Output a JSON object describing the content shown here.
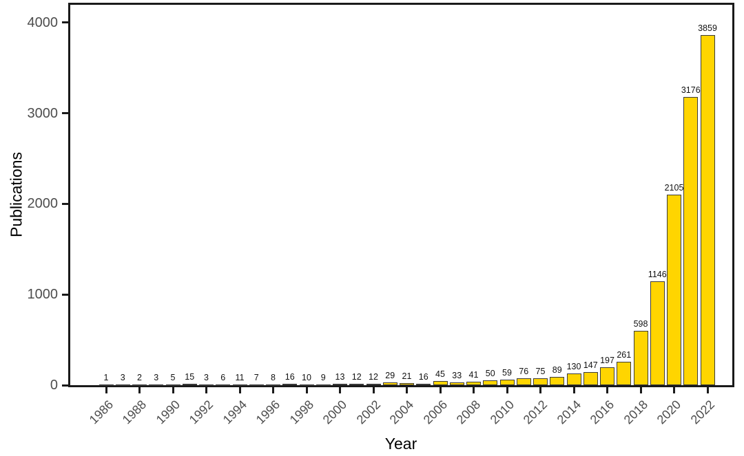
{
  "chart_data": {
    "type": "bar",
    "title": "",
    "xlabel": "Year",
    "ylabel": "Publications",
    "categories": [
      1986,
      1987,
      1988,
      1989,
      1990,
      1991,
      1992,
      1993,
      1994,
      1995,
      1996,
      1997,
      1998,
      1999,
      2000,
      2001,
      2002,
      2003,
      2004,
      2005,
      2006,
      2007,
      2008,
      2009,
      2010,
      2011,
      2012,
      2013,
      2014,
      2015,
      2016,
      2017,
      2018,
      2019,
      2020,
      2021,
      2022
    ],
    "values": [
      1,
      3,
      2,
      3,
      5,
      15,
      3,
      6,
      11,
      7,
      8,
      16,
      10,
      9,
      13,
      12,
      12,
      29,
      21,
      16,
      45,
      33,
      41,
      50,
      59,
      76,
      75,
      89,
      130,
      147,
      197,
      261,
      598,
      1146,
      2105,
      3176,
      3859
    ],
    "value_labels_shown": true,
    "yticks": [
      0,
      1000,
      2000,
      3000,
      4000
    ],
    "xticks": [
      1986,
      1988,
      1990,
      1992,
      1994,
      1996,
      1998,
      2000,
      2002,
      2004,
      2006,
      2008,
      2010,
      2012,
      2014,
      2016,
      2018,
      2020,
      2022
    ],
    "ylim": [
      0,
      4195
    ],
    "grid": false,
    "legend": null,
    "xtick_label_angle_degrees": 45,
    "colors": {
      "bar_fill": "#FFD500",
      "bar_border": "#3a3a3a",
      "panel_frame": "#1a1a1a",
      "tick_label": "#4d4d4d",
      "axis_title": "#000000",
      "value_label": "#111111",
      "background": "#ffffff"
    }
  }
}
